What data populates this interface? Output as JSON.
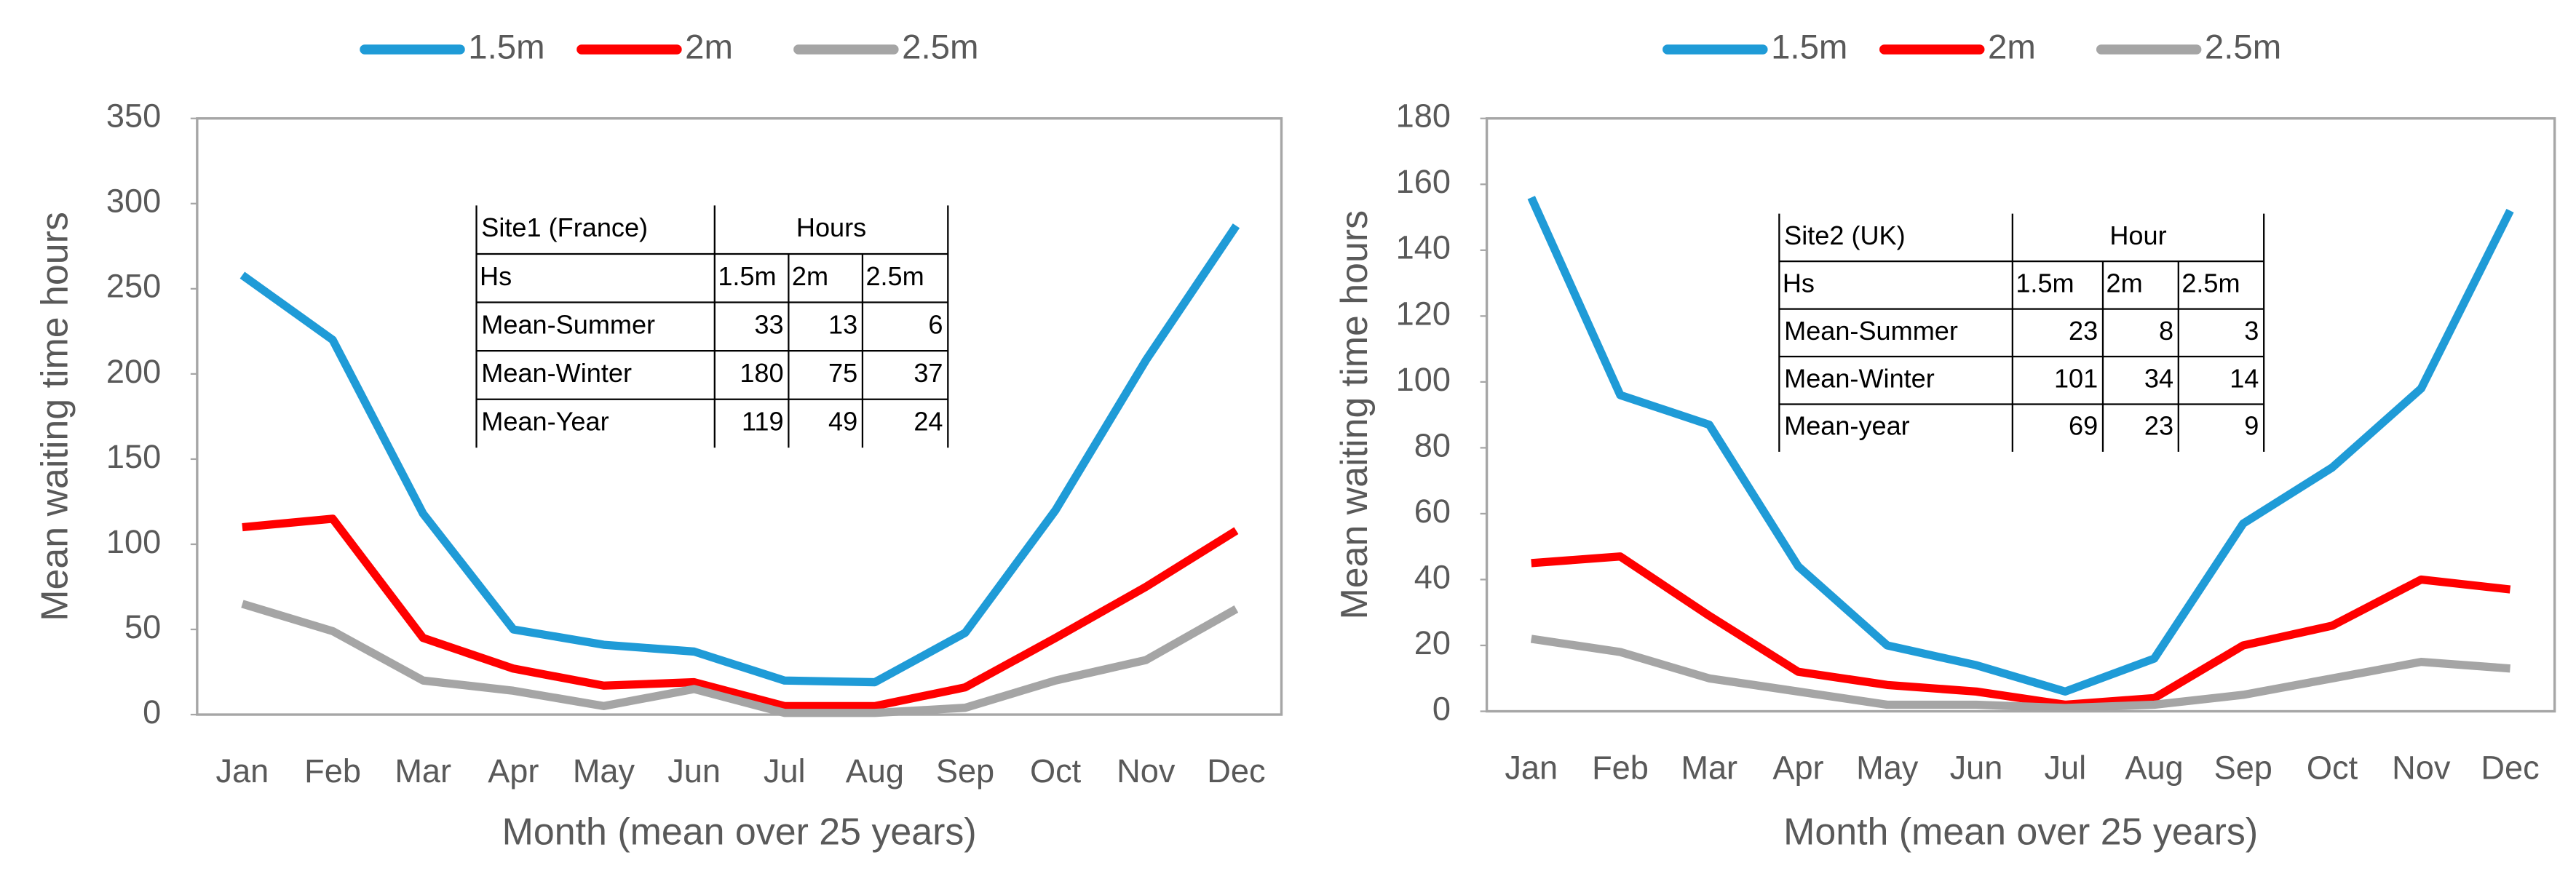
{
  "chart_data": [
    {
      "type": "line",
      "ylabel": "Mean waiting time hours",
      "xlabel": "Month (mean over 25 years)",
      "categories": [
        "Jan",
        "Feb",
        "Mar",
        "Apr",
        "May",
        "Jun",
        "Jul",
        "Aug",
        "Sep",
        "Oct",
        "Nov",
        "Dec"
      ],
      "ylim": [
        0,
        350
      ],
      "yticks": [
        0,
        50,
        100,
        150,
        200,
        250,
        300,
        350
      ],
      "series": [
        {
          "name": "1.5m",
          "color": "#1f9bd7",
          "values": [
            258,
            220,
            118,
            50,
            41,
            37,
            20,
            19,
            48,
            120,
            208,
            287
          ]
        },
        {
          "name": "2m",
          "color": "#ff0000",
          "values": [
            110,
            115,
            45,
            27,
            17,
            19,
            5,
            5,
            16,
            45,
            75,
            108
          ]
        },
        {
          "name": "2.5m",
          "color": "#a5a5a5",
          "values": [
            65,
            49,
            20,
            14,
            5,
            15,
            1,
            1,
            4,
            20,
            32,
            62
          ]
        }
      ],
      "table": {
        "header": [
          "Site1 (France)",
          "Hours"
        ],
        "columns": [
          "Hs",
          "1.5m",
          "2m",
          "2.5m"
        ],
        "rows": [
          [
            "Mean-Summer",
            33,
            13,
            6
          ],
          [
            "Mean-Winter",
            180,
            75,
            37
          ],
          [
            "Mean-Year",
            119,
            49,
            24
          ]
        ]
      }
    },
    {
      "type": "line",
      "ylabel": "Mean waiting time hours",
      "xlabel": "Month (mean over 25 years)",
      "categories": [
        "Jan",
        "Feb",
        "Mar",
        "Apr",
        "May",
        "Jun",
        "Jul",
        "Aug",
        "Sep",
        "Oct",
        "Nov",
        "Dec"
      ],
      "ylim": [
        0,
        180
      ],
      "yticks": [
        0,
        20,
        40,
        60,
        80,
        100,
        120,
        140,
        160,
        180
      ],
      "series": [
        {
          "name": "1.5m",
          "color": "#1f9bd7",
          "values": [
            156,
            96,
            87,
            44,
            20,
            14,
            6,
            16,
            57,
            74,
            98,
            152
          ]
        },
        {
          "name": "2m",
          "color": "#ff0000",
          "values": [
            45,
            47,
            29,
            12,
            8,
            6,
            2,
            4,
            20,
            26,
            40,
            37
          ]
        },
        {
          "name": "2.5m",
          "color": "#a5a5a5",
          "values": [
            22,
            18,
            10,
            6,
            2,
            2,
            1,
            2,
            5,
            10,
            15,
            13
          ]
        }
      ],
      "table": {
        "header": [
          "Site2 (UK)",
          "Hour"
        ],
        "columns": [
          "Hs",
          "1.5m",
          "2m",
          "2.5m"
        ],
        "rows": [
          [
            "Mean-Summer",
            23,
            8,
            3
          ],
          [
            "Mean-Winter",
            101,
            34,
            14
          ],
          [
            "Mean-year",
            69,
            23,
            9
          ]
        ]
      }
    }
  ]
}
